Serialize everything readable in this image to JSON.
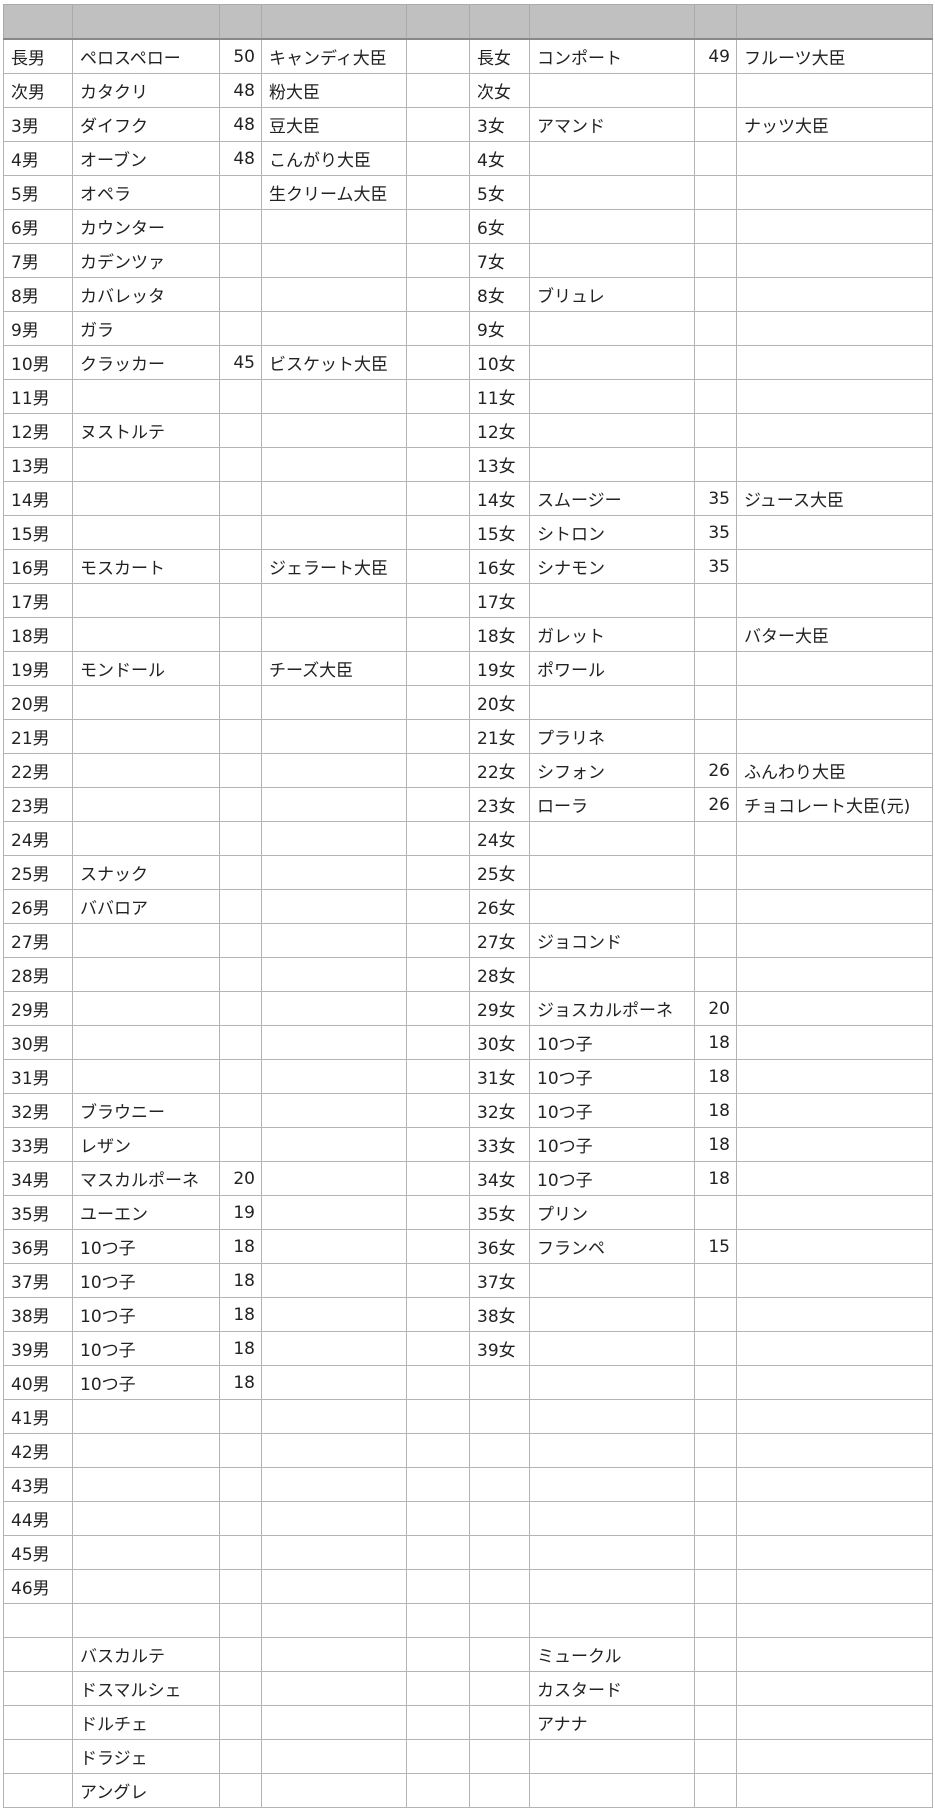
{
  "header": [
    "",
    "",
    "",
    "",
    "",
    "",
    "",
    "",
    ""
  ],
  "rows": [
    [
      "長男",
      "ペロスペロー",
      "50",
      "キャンディ大臣",
      "",
      "長女",
      "コンポート",
      "49",
      "フルーツ大臣"
    ],
    [
      "次男",
      "カタクリ",
      "48",
      "粉大臣",
      "",
      "次女",
      "",
      "",
      ""
    ],
    [
      "3男",
      "ダイフク",
      "48",
      "豆大臣",
      "",
      "3女",
      "アマンド",
      "",
      "ナッツ大臣"
    ],
    [
      "4男",
      "オーブン",
      "48",
      "こんがり大臣",
      "",
      "4女",
      "",
      "",
      ""
    ],
    [
      "5男",
      "オペラ",
      "",
      "生クリーム大臣",
      "",
      "5女",
      "",
      "",
      ""
    ],
    [
      "6男",
      "カウンター",
      "",
      "",
      "",
      "6女",
      "",
      "",
      ""
    ],
    [
      "7男",
      "カデンツァ",
      "",
      "",
      "",
      "7女",
      "",
      "",
      ""
    ],
    [
      "8男",
      "カバレッタ",
      "",
      "",
      "",
      "8女",
      "ブリュレ",
      "",
      ""
    ],
    [
      "9男",
      "ガラ",
      "",
      "",
      "",
      "9女",
      "",
      "",
      ""
    ],
    [
      "10男",
      "クラッカー",
      "45",
      "ビスケット大臣",
      "",
      "10女",
      "",
      "",
      ""
    ],
    [
      "11男",
      "",
      "",
      "",
      "",
      "11女",
      "",
      "",
      ""
    ],
    [
      "12男",
      "ヌストルテ",
      "",
      "",
      "",
      "12女",
      "",
      "",
      ""
    ],
    [
      "13男",
      "",
      "",
      "",
      "",
      "13女",
      "",
      "",
      ""
    ],
    [
      "14男",
      "",
      "",
      "",
      "",
      "14女",
      "スムージー",
      "35",
      "ジュース大臣"
    ],
    [
      "15男",
      "",
      "",
      "",
      "",
      "15女",
      "シトロン",
      "35",
      ""
    ],
    [
      "16男",
      "モスカート",
      "",
      "ジェラート大臣",
      "",
      "16女",
      "シナモン",
      "35",
      ""
    ],
    [
      "17男",
      "",
      "",
      "",
      "",
      "17女",
      "",
      "",
      ""
    ],
    [
      "18男",
      "",
      "",
      "",
      "",
      "18女",
      "ガレット",
      "",
      "バター大臣"
    ],
    [
      "19男",
      "モンドール",
      "",
      "チーズ大臣",
      "",
      "19女",
      "ポワール",
      "",
      ""
    ],
    [
      "20男",
      "",
      "",
      "",
      "",
      "20女",
      "",
      "",
      ""
    ],
    [
      "21男",
      "",
      "",
      "",
      "",
      "21女",
      "プラリネ",
      "",
      ""
    ],
    [
      "22男",
      "",
      "",
      "",
      "",
      "22女",
      "シフォン",
      "26",
      "ふんわり大臣"
    ],
    [
      "23男",
      "",
      "",
      "",
      "",
      "23女",
      "ローラ",
      "26",
      "チョコレート大臣(元)"
    ],
    [
      "24男",
      "",
      "",
      "",
      "",
      "24女",
      "",
      "",
      ""
    ],
    [
      "25男",
      "スナック",
      "",
      "",
      "",
      "25女",
      "",
      "",
      ""
    ],
    [
      "26男",
      "ババロア",
      "",
      "",
      "",
      "26女",
      "",
      "",
      ""
    ],
    [
      "27男",
      "",
      "",
      "",
      "",
      "27女",
      "ジョコンド",
      "",
      ""
    ],
    [
      "28男",
      "",
      "",
      "",
      "",
      "28女",
      "",
      "",
      ""
    ],
    [
      "29男",
      "",
      "",
      "",
      "",
      "29女",
      "ジョスカルポーネ",
      "20",
      ""
    ],
    [
      "30男",
      "",
      "",
      "",
      "",
      "30女",
      "10つ子",
      "18",
      ""
    ],
    [
      "31男",
      "",
      "",
      "",
      "",
      "31女",
      "10つ子",
      "18",
      ""
    ],
    [
      "32男",
      "ブラウニー",
      "",
      "",
      "",
      "32女",
      "10つ子",
      "18",
      ""
    ],
    [
      "33男",
      "レザン",
      "",
      "",
      "",
      "33女",
      "10つ子",
      "18",
      ""
    ],
    [
      "34男",
      "マスカルポーネ",
      "20",
      "",
      "",
      "34女",
      "10つ子",
      "18",
      ""
    ],
    [
      "35男",
      "ユーエン",
      "19",
      "",
      "",
      "35女",
      "プリン",
      "",
      ""
    ],
    [
      "36男",
      "10つ子",
      "18",
      "",
      "",
      "36女",
      "フランペ",
      "15",
      ""
    ],
    [
      "37男",
      "10つ子",
      "18",
      "",
      "",
      "37女",
      "",
      "",
      ""
    ],
    [
      "38男",
      "10つ子",
      "18",
      "",
      "",
      "38女",
      "",
      "",
      ""
    ],
    [
      "39男",
      "10つ子",
      "18",
      "",
      "",
      "39女",
      "",
      "",
      ""
    ],
    [
      "40男",
      "10つ子",
      "18",
      "",
      "",
      "",
      "",
      "",
      ""
    ],
    [
      "41男",
      "",
      "",
      "",
      "",
      "",
      "",
      "",
      ""
    ],
    [
      "42男",
      "",
      "",
      "",
      "",
      "",
      "",
      "",
      ""
    ],
    [
      "43男",
      "",
      "",
      "",
      "",
      "",
      "",
      "",
      ""
    ],
    [
      "44男",
      "",
      "",
      "",
      "",
      "",
      "",
      "",
      ""
    ],
    [
      "45男",
      "",
      "",
      "",
      "",
      "",
      "",
      "",
      ""
    ],
    [
      "46男",
      "",
      "",
      "",
      "",
      "",
      "",
      "",
      ""
    ],
    [
      "",
      "",
      "",
      "",
      "",
      "",
      "",
      "",
      ""
    ],
    [
      "",
      "バスカルテ",
      "",
      "",
      "",
      "",
      "ミュークル",
      "",
      ""
    ],
    [
      "",
      "ドスマルシェ",
      "",
      "",
      "",
      "",
      "カスタード",
      "",
      ""
    ],
    [
      "",
      "ドルチェ",
      "",
      "",
      "",
      "",
      "アナナ",
      "",
      ""
    ],
    [
      "",
      "ドラジェ",
      "",
      "",
      "",
      "",
      "",
      "",
      ""
    ],
    [
      "",
      "アングレ",
      "",
      "",
      "",
      "",
      "",
      "",
      ""
    ]
  ]
}
